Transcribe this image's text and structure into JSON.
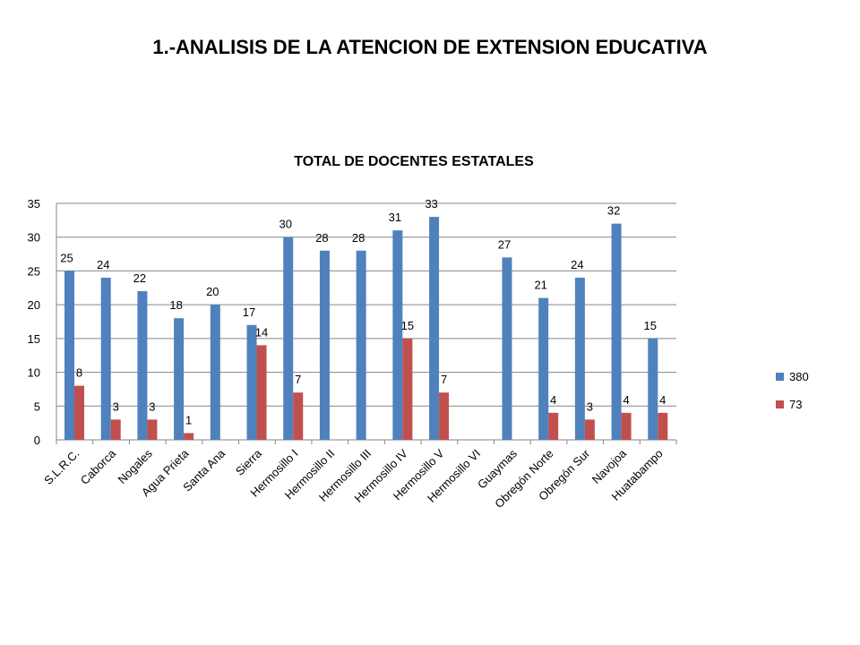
{
  "page": {
    "title": "1.-ANALISIS DE LA ATENCION DE EXTENSION EDUCATIVA"
  },
  "chart_data": {
    "type": "bar",
    "title": "TOTAL DE DOCENTES ESTATALES",
    "xlabel": "",
    "ylabel": "",
    "ylim": [
      0,
      35
    ],
    "yticks": [
      0,
      5,
      10,
      15,
      20,
      25,
      30,
      35
    ],
    "grid": true,
    "legend_position": "right",
    "categories": [
      "S.L.R.C.",
      "Caborca",
      "Nogales",
      "Agua Prieta",
      "Santa Ana",
      "Sierra",
      "Hermosillo I",
      "Hermosillo II",
      "Hermosillo III",
      "Hermosillo IV",
      "Hermosillo V",
      "Hermosillo VI",
      "Guaymas",
      "Obregón Norte",
      "Obregón Sur",
      "Navojoa",
      "Huatabampo"
    ],
    "series": [
      {
        "name": "380",
        "color": "#4f81bd",
        "values": [
          25,
          24,
          22,
          18,
          20,
          17,
          30,
          28,
          28,
          31,
          33,
          null,
          27,
          21,
          24,
          32,
          15
        ]
      },
      {
        "name": "73",
        "color": "#c0504d",
        "values": [
          8,
          3,
          3,
          1,
          null,
          14,
          7,
          null,
          null,
          15,
          7,
          null,
          null,
          4,
          3,
          4,
          4
        ]
      }
    ]
  }
}
